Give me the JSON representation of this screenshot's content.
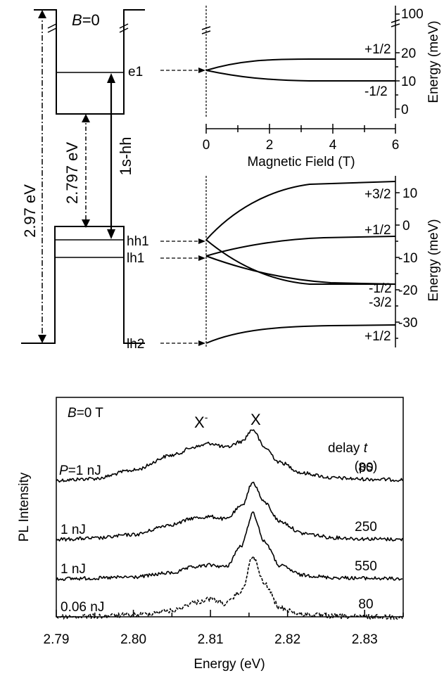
{
  "top_diagram": {
    "title_B0": "B=0",
    "levels": {
      "e1": "e1",
      "hh1": "hh1",
      "lh1": "lh1",
      "lh2": "lh2"
    },
    "arrows": {
      "total_gap": "2.97 eV",
      "well_gap": "2.797 eV",
      "transition": "1s-hh"
    }
  },
  "electron_panel": {
    "xlabel": "Magnetic Field (T)",
    "ylabel": "Energy (meV)",
    "xticks": [
      "0",
      "2",
      "4",
      "6"
    ],
    "yticks": [
      "100",
      "20",
      "10",
      "0"
    ],
    "branch_labels": [
      "+1/2",
      "-1/2"
    ]
  },
  "hole_panel": {
    "ylabel": "Energy (meV)",
    "yticks": [
      "10",
      "0",
      "-10",
      "-20",
      "-30"
    ],
    "branch_labels": [
      "+3/2",
      "+1/2",
      "-1/2",
      "-3/2",
      "+1/2"
    ]
  },
  "chart_data": {
    "type": "line",
    "xlabel": "Energy (eV)",
    "ylabel": "PL Intensity",
    "xlim": [
      2.79,
      2.835
    ],
    "xticks": [
      "2.79",
      "2.80",
      "2.81",
      "2.82",
      "2.83"
    ],
    "annotations": {
      "field": "B=0 T",
      "peak_trion": "X",
      "peak_trion_sup": "-",
      "peak_exciton": "X",
      "delay_header_1": "delay t",
      "delay_header_2": "(ps)"
    },
    "series": [
      {
        "power_label": "P=1 nJ",
        "delay": "80",
        "style": "solid",
        "x": [
          2.79,
          2.795,
          2.8,
          2.805,
          2.808,
          2.81,
          2.812,
          2.814,
          2.8155,
          2.817,
          2.819,
          2.822,
          2.826,
          2.83,
          2.835
        ],
        "y": [
          0.0,
          0.03,
          0.17,
          0.42,
          0.56,
          0.62,
          0.55,
          0.65,
          0.85,
          0.55,
          0.3,
          0.12,
          0.04,
          0.02,
          0.01
        ]
      },
      {
        "power_label": "1 nJ",
        "delay": "250",
        "style": "solid",
        "x": [
          2.79,
          2.795,
          2.8,
          2.805,
          2.808,
          2.81,
          2.812,
          2.814,
          2.8155,
          2.817,
          2.819,
          2.822,
          2.826,
          2.83,
          2.835
        ],
        "y": [
          0.0,
          0.02,
          0.08,
          0.25,
          0.36,
          0.38,
          0.34,
          0.55,
          0.95,
          0.62,
          0.3,
          0.1,
          0.03,
          0.01,
          0.0
        ]
      },
      {
        "power_label": "1 nJ",
        "delay": "550",
        "style": "solid",
        "x": [
          2.79,
          2.795,
          2.8,
          2.805,
          2.808,
          2.81,
          2.812,
          2.814,
          2.8155,
          2.817,
          2.819,
          2.822,
          2.826,
          2.83,
          2.835
        ],
        "y": [
          0.0,
          0.01,
          0.03,
          0.1,
          0.2,
          0.23,
          0.2,
          0.55,
          1.1,
          0.62,
          0.22,
          0.06,
          0.02,
          0.01,
          0.0
        ]
      },
      {
        "power_label": "0.06 nJ",
        "delay": "80",
        "style": "dashed",
        "x": [
          2.79,
          2.795,
          2.8,
          2.805,
          2.808,
          2.81,
          2.812,
          2.814,
          2.8155,
          2.817,
          2.819,
          2.822,
          2.826,
          2.83,
          2.835
        ],
        "y": [
          0.0,
          0.01,
          0.03,
          0.1,
          0.24,
          0.3,
          0.22,
          0.42,
          1.0,
          0.55,
          0.15,
          0.04,
          0.01,
          0.0,
          0.0
        ]
      }
    ]
  }
}
